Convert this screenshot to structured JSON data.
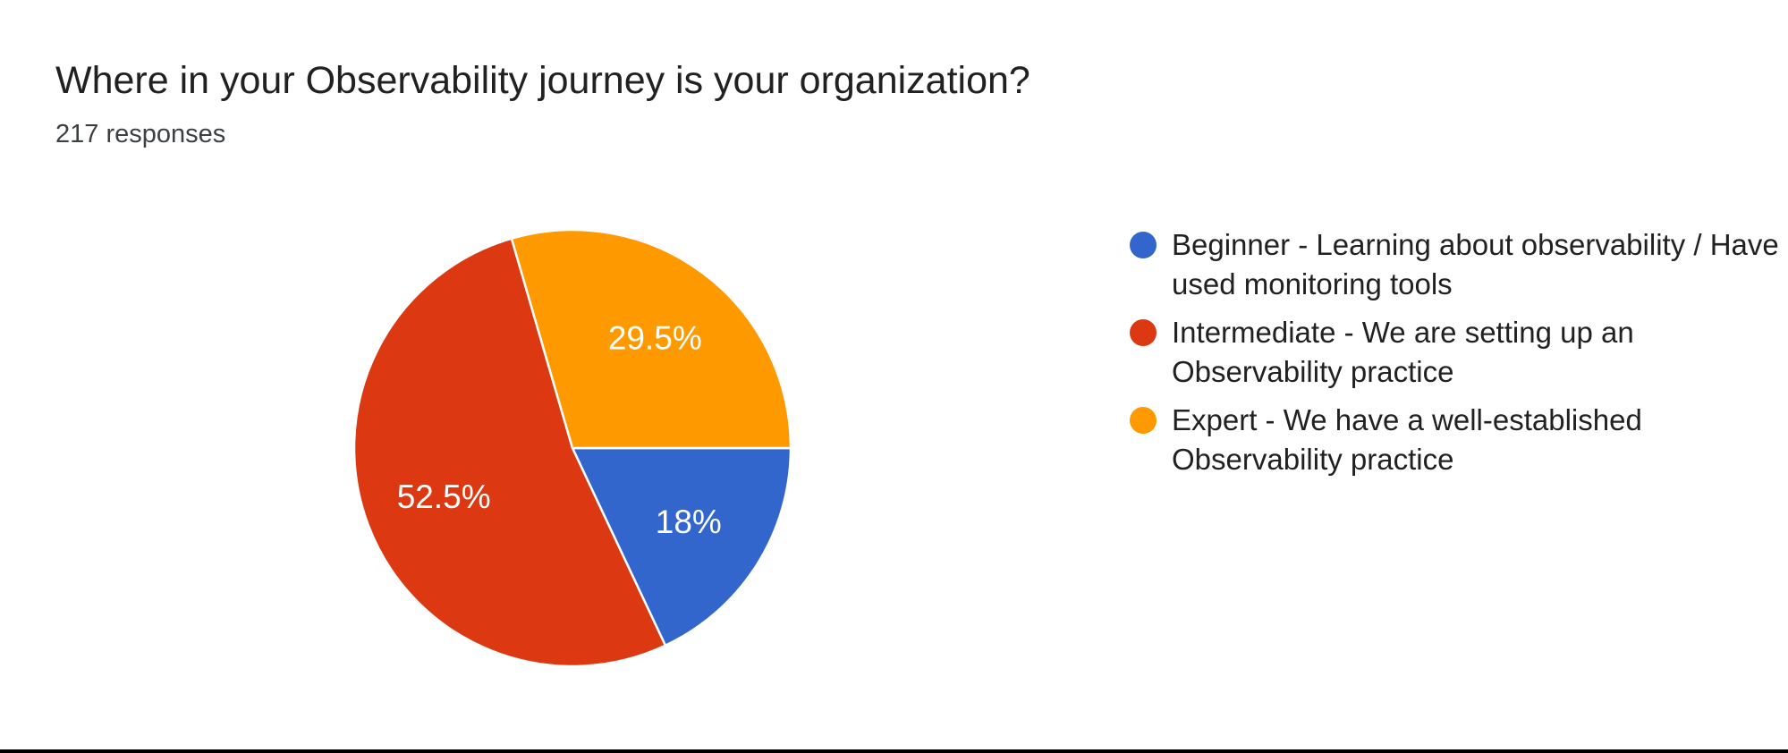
{
  "chart_data": {
    "type": "pie",
    "title": "Where in your Observability journey is your organization?",
    "subtitle": "217 responses",
    "total_responses": 217,
    "legend_position": "right",
    "start_angle": "3-oclock-clockwise",
    "slice_label_style": "percent-inside-white",
    "slices": [
      {
        "label": "Beginner - Learning about observability / Have used monitoring tools",
        "percent": 18,
        "display": "18%",
        "color": "#3366CC"
      },
      {
        "label": "Intermediate - We are setting up an Observability practice",
        "percent": 52.5,
        "display": "52.5%",
        "color": "#DC3912"
      },
      {
        "label": "Expert - We have a well-established Observability practice",
        "percent": 29.5,
        "display": "29.5%",
        "color": "#FF9900"
      }
    ]
  }
}
